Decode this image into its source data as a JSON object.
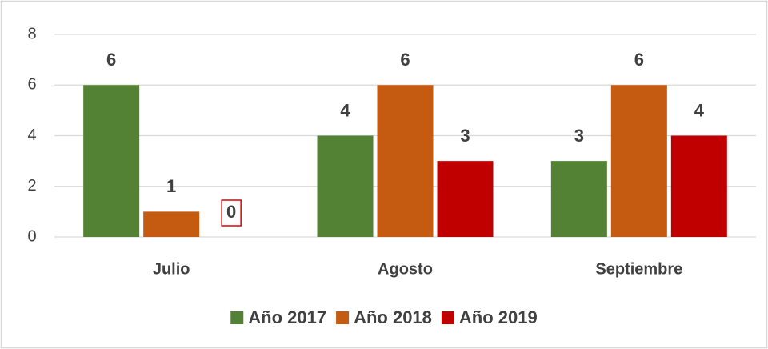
{
  "chart_data": {
    "type": "bar",
    "categories": [
      "Julio",
      "Agosto",
      "Septiembre"
    ],
    "series": [
      {
        "name": "Año 2017",
        "color": "#548235",
        "values": [
          6,
          4,
          3
        ]
      },
      {
        "name": "Año 2018",
        "color": "#c55a11",
        "values": [
          1,
          6,
          6
        ]
      },
      {
        "name": "Año 2019",
        "color": "#c00000",
        "values": [
          0,
          3,
          4
        ]
      }
    ],
    "ylim": [
      0,
      8
    ],
    "yticks": [
      0,
      2,
      4,
      6,
      8
    ],
    "grid": true,
    "legend": "bottom"
  }
}
